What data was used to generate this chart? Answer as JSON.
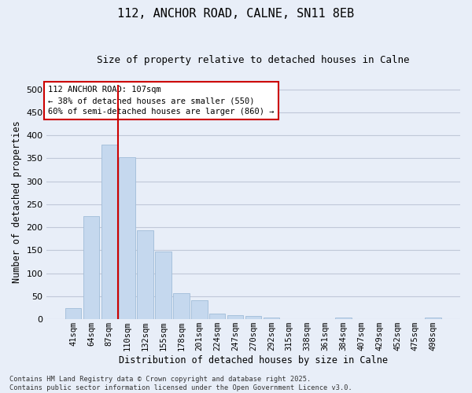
{
  "title": "112, ANCHOR ROAD, CALNE, SN11 8EB",
  "subtitle": "Size of property relative to detached houses in Calne",
  "xlabel": "Distribution of detached houses by size in Calne",
  "ylabel": "Number of detached properties",
  "categories": [
    "41sqm",
    "64sqm",
    "87sqm",
    "110sqm",
    "132sqm",
    "155sqm",
    "178sqm",
    "201sqm",
    "224sqm",
    "247sqm",
    "270sqm",
    "292sqm",
    "315sqm",
    "338sqm",
    "361sqm",
    "384sqm",
    "407sqm",
    "429sqm",
    "452sqm",
    "475sqm",
    "498sqm"
  ],
  "values": [
    24,
    224,
    380,
    352,
    193,
    147,
    56,
    41,
    12,
    9,
    7,
    4,
    0,
    0,
    0,
    4,
    0,
    0,
    0,
    0,
    4
  ],
  "bar_color": "#c5d8ee",
  "bar_edgecolor": "#a0bcd8",
  "background_color": "#e8eef8",
  "grid_color": "#c0c8d8",
  "property_label": "112 ANCHOR ROAD: 107sqm",
  "pct_smaller": "38% of detached houses are smaller (550)",
  "pct_larger": "60% of semi-detached houses are larger (860)",
  "vline_x_index": 2.5,
  "annotation_box_edgecolor": "#cc0000",
  "footnote": "Contains HM Land Registry data © Crown copyright and database right 2025.\nContains public sector information licensed under the Open Government Licence v3.0.",
  "ylim": [
    0,
    510
  ],
  "yticks": [
    0,
    50,
    100,
    150,
    200,
    250,
    300,
    350,
    400,
    450,
    500
  ]
}
